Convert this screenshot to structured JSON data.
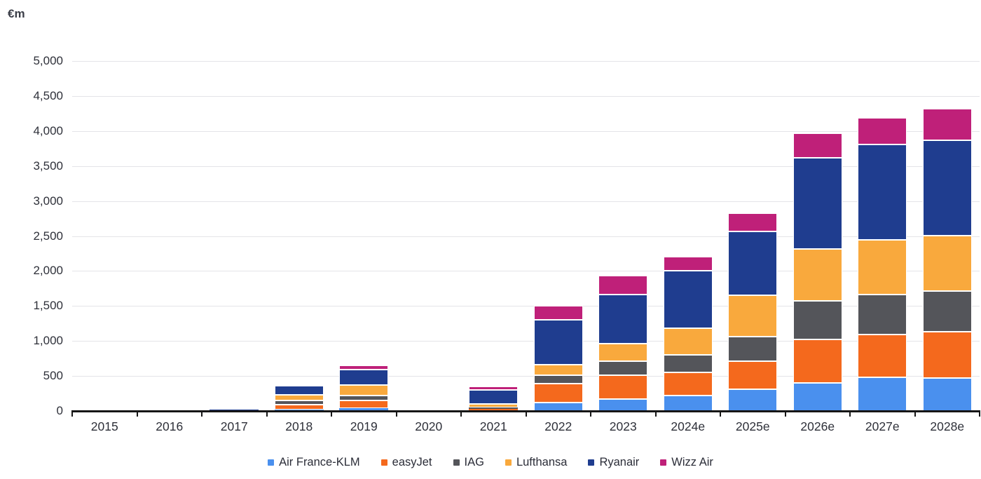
{
  "chart_data": {
    "type": "bar",
    "stacked": true,
    "unit": "€m",
    "categories": [
      "2015",
      "2016",
      "2017",
      "2018",
      "2019",
      "2020",
      "2021",
      "2022",
      "2023",
      "2024e",
      "2025e",
      "2026e",
      "2027e",
      "2028e"
    ],
    "series": [
      {
        "name": "Air France-KLM",
        "color": "#4a90ee",
        "values": [
          0,
          0,
          0,
          25,
          40,
          0,
          15,
          120,
          175,
          225,
          310,
          405,
          485,
          475
        ]
      },
      {
        "name": "easyJet",
        "color": "#f4691d",
        "values": [
          0,
          0,
          0,
          70,
          110,
          0,
          20,
          275,
          340,
          330,
          405,
          615,
          610,
          660
        ]
      },
      {
        "name": "IAG",
        "color": "#54555a",
        "values": [
          0,
          0,
          0,
          55,
          75,
          0,
          15,
          115,
          200,
          250,
          350,
          555,
          570,
          580
        ]
      },
      {
        "name": "Lufthansa",
        "color": "#f9a93d",
        "values": [
          0,
          0,
          5,
          80,
          145,
          0,
          55,
          150,
          245,
          380,
          590,
          740,
          780,
          790
        ]
      },
      {
        "name": "Ryanair",
        "color": "#1f3d8f",
        "values": [
          15,
          0,
          15,
          135,
          225,
          0,
          200,
          640,
          705,
          820,
          910,
          1300,
          1360,
          1360
        ]
      },
      {
        "name": "Wizz Air",
        "color": "#bf2079",
        "values": [
          0,
          0,
          0,
          0,
          55,
          0,
          45,
          200,
          265,
          200,
          260,
          350,
          385,
          450
        ]
      }
    ],
    "ylim": [
      0,
      5000
    ],
    "ytick_step": 500,
    "grid": true,
    "legend_position": "bottom"
  }
}
